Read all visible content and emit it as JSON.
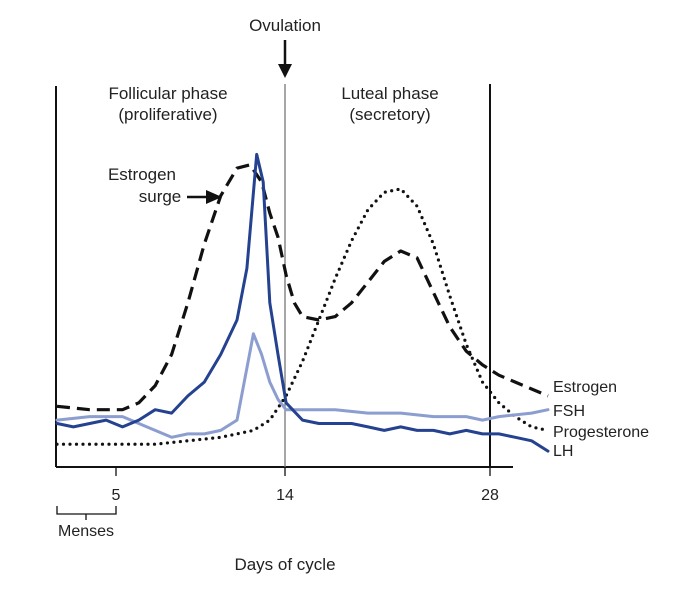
{
  "chart_data": {
    "type": "line",
    "xlabel": "Days of cycle",
    "ylabel": "",
    "xlim": [
      1,
      31
    ],
    "ylim": [
      0,
      1
    ],
    "x_ticks": [
      5,
      14,
      28
    ],
    "menses_label": "Menses",
    "menses_range": [
      1,
      5
    ],
    "grid": false,
    "ovulation": {
      "label": "Ovulation",
      "day": 14
    },
    "phase_boundary_day": 28,
    "phases": [
      {
        "line1": "Follicular phase",
        "line2": "(proliferative)"
      },
      {
        "line1": "Luteal phase",
        "line2": "(secretory)"
      }
    ],
    "annotation": {
      "line1": "Estrogen",
      "line2": "surge"
    },
    "series": [
      {
        "name": "Estrogen",
        "color": "#111111",
        "style": "dashed",
        "x": [
          1,
          3,
          5,
          6,
          7,
          8,
          9,
          10,
          11,
          12,
          12.8,
          13.5,
          14,
          14.5,
          15,
          15.5,
          16,
          17,
          18,
          19,
          20,
          21,
          22,
          23,
          24,
          25,
          26,
          27,
          28,
          29,
          30,
          31
        ],
        "y": [
          0.15,
          0.14,
          0.14,
          0.16,
          0.21,
          0.3,
          0.45,
          0.62,
          0.76,
          0.84,
          0.85,
          0.8,
          0.71,
          0.64,
          0.53,
          0.45,
          0.41,
          0.4,
          0.41,
          0.45,
          0.51,
          0.57,
          0.6,
          0.58,
          0.48,
          0.38,
          0.31,
          0.27,
          0.24,
          0.22,
          0.2,
          0.18
        ]
      },
      {
        "name": "FSH",
        "color": "#8c9dd0",
        "style": "solid",
        "x": [
          1,
          3,
          5,
          6,
          7,
          8,
          9,
          10,
          11,
          12,
          13,
          13.5,
          14,
          14.5,
          15,
          16,
          18,
          20,
          22,
          24,
          26,
          27,
          28,
          30,
          31
        ],
        "y": [
          0.11,
          0.12,
          0.12,
          0.1,
          0.08,
          0.06,
          0.07,
          0.07,
          0.08,
          0.11,
          0.36,
          0.3,
          0.22,
          0.17,
          0.14,
          0.14,
          0.14,
          0.13,
          0.13,
          0.12,
          0.12,
          0.11,
          0.12,
          0.13,
          0.14
        ]
      },
      {
        "name": "Progesterone",
        "color": "#111111",
        "style": "dotted",
        "x": [
          1,
          3,
          5,
          7,
          9,
          11,
          13,
          14,
          15,
          16,
          17,
          18,
          19,
          20,
          21,
          22,
          23,
          24,
          25,
          26,
          27,
          28,
          29,
          30,
          31
        ],
        "y": [
          0.04,
          0.04,
          0.04,
          0.04,
          0.05,
          0.06,
          0.08,
          0.11,
          0.18,
          0.28,
          0.4,
          0.52,
          0.63,
          0.72,
          0.77,
          0.78,
          0.73,
          0.62,
          0.47,
          0.33,
          0.22,
          0.16,
          0.12,
          0.09,
          0.08
        ]
      },
      {
        "name": "LH",
        "color": "#24428f",
        "style": "solid",
        "x": [
          1,
          2,
          3,
          4,
          5,
          6,
          7,
          8,
          9,
          10,
          11,
          12,
          12.6,
          13.2,
          13.6,
          14,
          14.5,
          15,
          16,
          17,
          18,
          19,
          20,
          21,
          22,
          23,
          24,
          25,
          26,
          27,
          28,
          29,
          30,
          31
        ],
        "y": [
          0.1,
          0.09,
          0.1,
          0.11,
          0.09,
          0.11,
          0.14,
          0.13,
          0.18,
          0.22,
          0.3,
          0.4,
          0.55,
          0.88,
          0.8,
          0.45,
          0.3,
          0.16,
          0.11,
          0.1,
          0.1,
          0.1,
          0.09,
          0.08,
          0.09,
          0.08,
          0.08,
          0.07,
          0.08,
          0.07,
          0.07,
          0.06,
          0.05,
          0.02
        ]
      }
    ]
  }
}
